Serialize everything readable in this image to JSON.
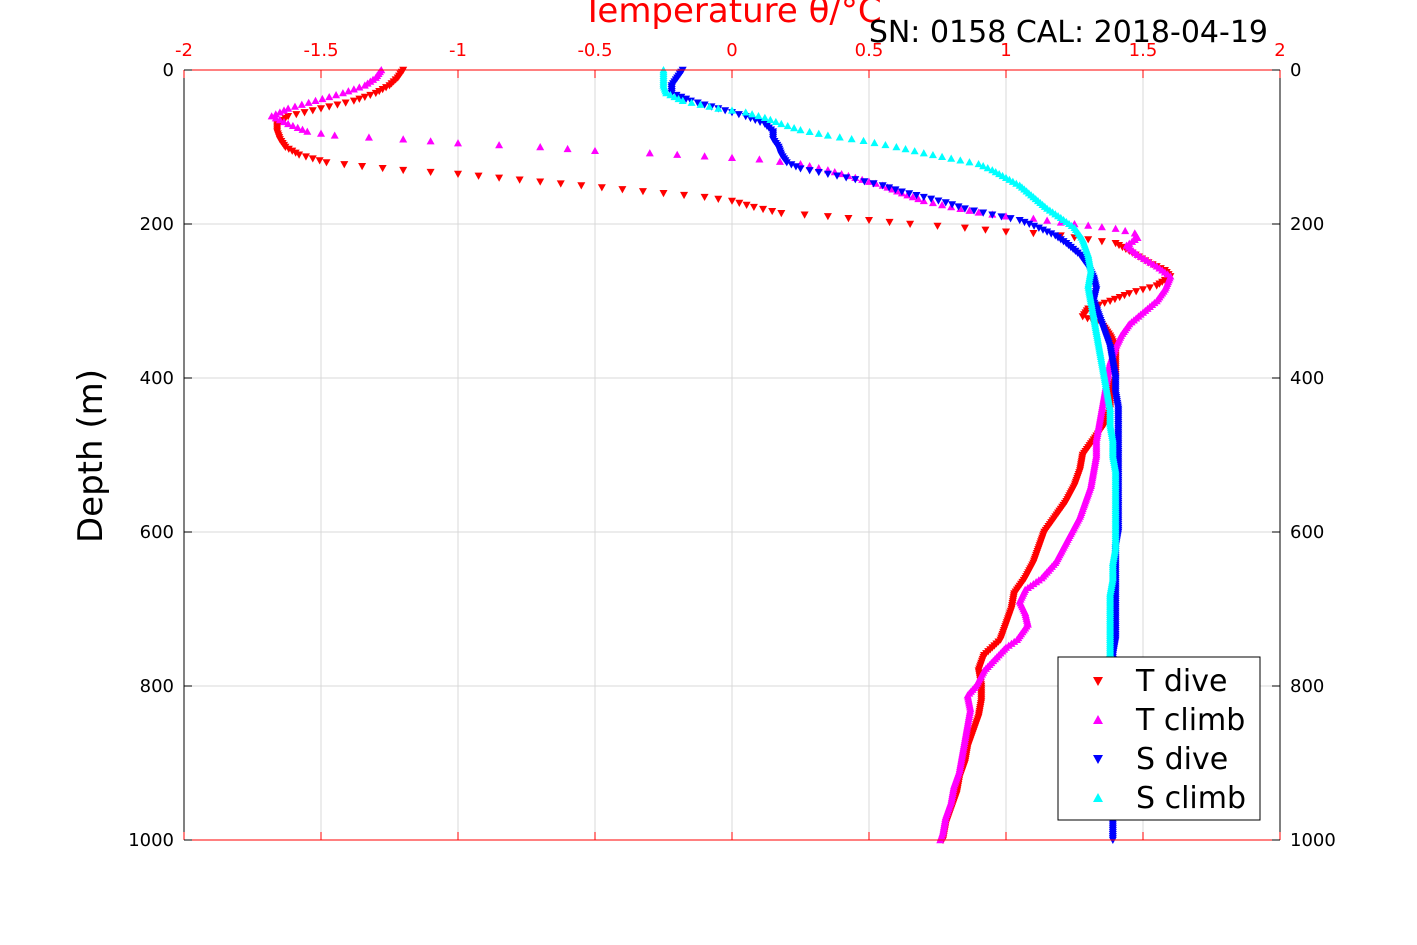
{
  "header": {
    "serial_info": "SN: 0158  CAL: 2018-04-19"
  },
  "chart_data": {
    "type": "scatter",
    "title": "Temperature θ/°C",
    "xlabel": "Temperature θ/°C",
    "ylabel": "Depth (m)",
    "xlim": [
      -2,
      2
    ],
    "ylim": [
      0,
      1000
    ],
    "y_reversed": true,
    "x_ticks": [
      "-2",
      "-1.5",
      "-1",
      "-0.5",
      "0",
      "0.5",
      "1",
      "1.5",
      "2"
    ],
    "y_ticks": [
      "0",
      "200",
      "400",
      "600",
      "800",
      "1000"
    ],
    "grid": true,
    "legend_placement": "bottom-right",
    "colors": {
      "axis_top": "#ff0000",
      "axis_left": "#000000",
      "grid": "#d9d9d9"
    },
    "series": [
      {
        "name": "T dive",
        "color": "#ff0000",
        "marker": "triangle-down",
        "points": [
          [
            -1.2,
            0
          ],
          [
            -1.22,
            10
          ],
          [
            -1.25,
            20
          ],
          [
            -1.3,
            30
          ],
          [
            -1.38,
            40
          ],
          [
            -1.5,
            50
          ],
          [
            -1.62,
            60
          ],
          [
            -1.66,
            70
          ],
          [
            -1.66,
            80
          ],
          [
            -1.65,
            90
          ],
          [
            -1.63,
            100
          ],
          [
            -1.58,
            110
          ],
          [
            -1.48,
            120
          ],
          [
            -1.35,
            125
          ],
          [
            -1.2,
            130
          ],
          [
            -1.0,
            135
          ],
          [
            -0.85,
            140
          ],
          [
            -0.7,
            145
          ],
          [
            -0.55,
            150
          ],
          [
            -0.4,
            155
          ],
          [
            -0.25,
            160
          ],
          [
            -0.1,
            165
          ],
          [
            0.0,
            170
          ],
          [
            0.08,
            178
          ],
          [
            0.18,
            186
          ],
          [
            0.35,
            190
          ],
          [
            0.5,
            195
          ],
          [
            0.65,
            200
          ],
          [
            0.85,
            205
          ],
          [
            1.0,
            210
          ],
          [
            1.1,
            212
          ],
          [
            1.2,
            215
          ],
          [
            1.3,
            220
          ],
          [
            1.4,
            225
          ],
          [
            1.45,
            235
          ],
          [
            1.52,
            250
          ],
          [
            1.58,
            260
          ],
          [
            1.6,
            268
          ],
          [
            1.55,
            280
          ],
          [
            1.45,
            290
          ],
          [
            1.38,
            300
          ],
          [
            1.3,
            310
          ],
          [
            1.28,
            320
          ],
          [
            1.35,
            330
          ],
          [
            1.38,
            345
          ],
          [
            1.4,
            360
          ],
          [
            1.4,
            380
          ],
          [
            1.4,
            400
          ],
          [
            1.38,
            420
          ],
          [
            1.38,
            440
          ],
          [
            1.36,
            460
          ],
          [
            1.32,
            480
          ],
          [
            1.28,
            500
          ],
          [
            1.27,
            520
          ],
          [
            1.25,
            540
          ],
          [
            1.22,
            560
          ],
          [
            1.18,
            580
          ],
          [
            1.14,
            600
          ],
          [
            1.12,
            620
          ],
          [
            1.1,
            640
          ],
          [
            1.07,
            660
          ],
          [
            1.03,
            680
          ],
          [
            1.02,
            700
          ],
          [
            1.0,
            720
          ],
          [
            0.98,
            740
          ],
          [
            0.92,
            760
          ],
          [
            0.9,
            780
          ],
          [
            0.91,
            800
          ],
          [
            0.91,
            820
          ],
          [
            0.9,
            840
          ],
          [
            0.88,
            860
          ],
          [
            0.86,
            880
          ],
          [
            0.85,
            900
          ],
          [
            0.83,
            920
          ],
          [
            0.82,
            940
          ],
          [
            0.8,
            960
          ],
          [
            0.78,
            980
          ],
          [
            0.77,
            1000
          ]
        ]
      },
      {
        "name": "T climb",
        "color": "#ff00ff",
        "marker": "triangle-up",
        "points": [
          [
            -1.28,
            0
          ],
          [
            -1.3,
            10
          ],
          [
            -1.34,
            20
          ],
          [
            -1.42,
            30
          ],
          [
            -1.52,
            40
          ],
          [
            -1.62,
            50
          ],
          [
            -1.68,
            60
          ],
          [
            -1.62,
            70
          ],
          [
            -1.55,
            80
          ],
          [
            -1.45,
            85
          ],
          [
            -1.2,
            90
          ],
          [
            -1.0,
            95
          ],
          [
            -0.7,
            100
          ],
          [
            -0.5,
            105
          ],
          [
            -0.3,
            108
          ],
          [
            -0.1,
            112
          ],
          [
            0.1,
            116
          ],
          [
            0.25,
            122
          ],
          [
            0.35,
            130
          ],
          [
            0.45,
            140
          ],
          [
            0.55,
            150
          ],
          [
            0.62,
            160
          ],
          [
            0.7,
            170
          ],
          [
            0.8,
            178
          ],
          [
            0.9,
            185
          ],
          [
            1.0,
            190
          ],
          [
            1.1,
            193
          ],
          [
            1.2,
            198
          ],
          [
            1.3,
            202
          ],
          [
            1.4,
            206
          ],
          [
            1.47,
            212
          ],
          [
            1.48,
            218
          ],
          [
            1.44,
            228
          ],
          [
            1.48,
            240
          ],
          [
            1.55,
            255
          ],
          [
            1.6,
            268
          ],
          [
            1.58,
            285
          ],
          [
            1.55,
            300
          ],
          [
            1.5,
            315
          ],
          [
            1.45,
            330
          ],
          [
            1.42,
            345
          ],
          [
            1.4,
            360
          ],
          [
            1.38,
            380
          ],
          [
            1.37,
            400
          ],
          [
            1.36,
            420
          ],
          [
            1.35,
            440
          ],
          [
            1.34,
            460
          ],
          [
            1.33,
            480
          ],
          [
            1.33,
            500
          ],
          [
            1.32,
            520
          ],
          [
            1.31,
            540
          ],
          [
            1.29,
            560
          ],
          [
            1.27,
            580
          ],
          [
            1.24,
            600
          ],
          [
            1.21,
            620
          ],
          [
            1.18,
            640
          ],
          [
            1.13,
            660
          ],
          [
            1.07,
            675
          ],
          [
            1.05,
            690
          ],
          [
            1.07,
            705
          ],
          [
            1.08,
            720
          ],
          [
            1.04,
            740
          ],
          [
            1.0,
            750
          ],
          [
            0.96,
            765
          ],
          [
            0.92,
            780
          ],
          [
            0.89,
            800
          ],
          [
            0.86,
            812
          ],
          [
            0.87,
            830
          ],
          [
            0.86,
            850
          ],
          [
            0.85,
            870
          ],
          [
            0.84,
            890
          ],
          [
            0.83,
            910
          ],
          [
            0.81,
            930
          ],
          [
            0.8,
            950
          ],
          [
            0.78,
            970
          ],
          [
            0.77,
            990
          ],
          [
            0.76,
            1000
          ]
        ]
      },
      {
        "name": "S dive",
        "color": "#0000ff",
        "marker": "triangle-down",
        "points": [
          [
            -0.18,
            0
          ],
          [
            -0.2,
            10
          ],
          [
            -0.22,
            20
          ],
          [
            -0.22,
            30
          ],
          [
            -0.15,
            40
          ],
          [
            -0.05,
            50
          ],
          [
            0.05,
            60
          ],
          [
            0.12,
            70
          ],
          [
            0.15,
            80
          ],
          [
            0.15,
            90
          ],
          [
            0.17,
            100
          ],
          [
            0.18,
            110
          ],
          [
            0.2,
            120
          ],
          [
            0.25,
            128
          ],
          [
            0.35,
            135
          ],
          [
            0.45,
            142
          ],
          [
            0.55,
            150
          ],
          [
            0.62,
            158
          ],
          [
            0.7,
            165
          ],
          [
            0.78,
            172
          ],
          [
            0.85,
            180
          ],
          [
            0.95,
            188
          ],
          [
            1.05,
            195
          ],
          [
            1.12,
            205
          ],
          [
            1.18,
            215
          ],
          [
            1.22,
            225
          ],
          [
            1.27,
            240
          ],
          [
            1.3,
            255
          ],
          [
            1.32,
            270
          ],
          [
            1.33,
            285
          ],
          [
            1.32,
            300
          ],
          [
            1.34,
            320
          ],
          [
            1.36,
            340
          ],
          [
            1.38,
            360
          ],
          [
            1.39,
            380
          ],
          [
            1.4,
            400
          ],
          [
            1.4,
            420
          ],
          [
            1.41,
            440
          ],
          [
            1.41,
            460
          ],
          [
            1.41,
            480
          ],
          [
            1.41,
            500
          ],
          [
            1.41,
            520
          ],
          [
            1.41,
            540
          ],
          [
            1.41,
            560
          ],
          [
            1.41,
            580
          ],
          [
            1.41,
            600
          ],
          [
            1.4,
            620
          ],
          [
            1.4,
            640
          ],
          [
            1.4,
            660
          ],
          [
            1.4,
            680
          ],
          [
            1.4,
            700
          ],
          [
            1.4,
            720
          ],
          [
            1.4,
            740
          ],
          [
            1.39,
            760
          ],
          [
            1.39,
            780
          ],
          [
            1.39,
            800
          ],
          [
            1.39,
            820
          ],
          [
            1.39,
            840
          ],
          [
            1.39,
            860
          ],
          [
            1.39,
            880
          ],
          [
            1.39,
            900
          ],
          [
            1.39,
            920
          ],
          [
            1.39,
            940
          ],
          [
            1.39,
            960
          ],
          [
            1.39,
            980
          ],
          [
            1.39,
            1000
          ]
        ]
      },
      {
        "name": "S climb",
        "color": "#00ffff",
        "marker": "triangle-up",
        "points": [
          [
            -0.25,
            0
          ],
          [
            -0.25,
            10
          ],
          [
            -0.25,
            20
          ],
          [
            -0.24,
            30
          ],
          [
            -0.18,
            40
          ],
          [
            -0.05,
            50
          ],
          [
            0.05,
            55
          ],
          [
            0.12,
            62
          ],
          [
            0.18,
            70
          ],
          [
            0.25,
            78
          ],
          [
            0.35,
            85
          ],
          [
            0.48,
            92
          ],
          [
            0.6,
            100
          ],
          [
            0.7,
            108
          ],
          [
            0.8,
            115
          ],
          [
            0.9,
            122
          ],
          [
            0.95,
            130
          ],
          [
            1.0,
            140
          ],
          [
            1.05,
            150
          ],
          [
            1.1,
            165
          ],
          [
            1.15,
            180
          ],
          [
            1.2,
            192
          ],
          [
            1.25,
            205
          ],
          [
            1.28,
            220
          ],
          [
            1.3,
            240
          ],
          [
            1.31,
            260
          ],
          [
            1.3,
            280
          ],
          [
            1.31,
            300
          ],
          [
            1.32,
            320
          ],
          [
            1.33,
            340
          ],
          [
            1.34,
            360
          ],
          [
            1.35,
            380
          ],
          [
            1.36,
            400
          ],
          [
            1.37,
            420
          ],
          [
            1.38,
            440
          ],
          [
            1.38,
            460
          ],
          [
            1.39,
            480
          ],
          [
            1.39,
            500
          ],
          [
            1.4,
            520
          ],
          [
            1.4,
            540
          ],
          [
            1.4,
            560
          ],
          [
            1.4,
            580
          ],
          [
            1.4,
            600
          ],
          [
            1.4,
            620
          ],
          [
            1.39,
            640
          ],
          [
            1.39,
            660
          ],
          [
            1.38,
            680
          ],
          [
            1.38,
            700
          ],
          [
            1.38,
            720
          ],
          [
            1.38,
            740
          ],
          [
            1.38,
            760
          ]
        ]
      }
    ]
  }
}
